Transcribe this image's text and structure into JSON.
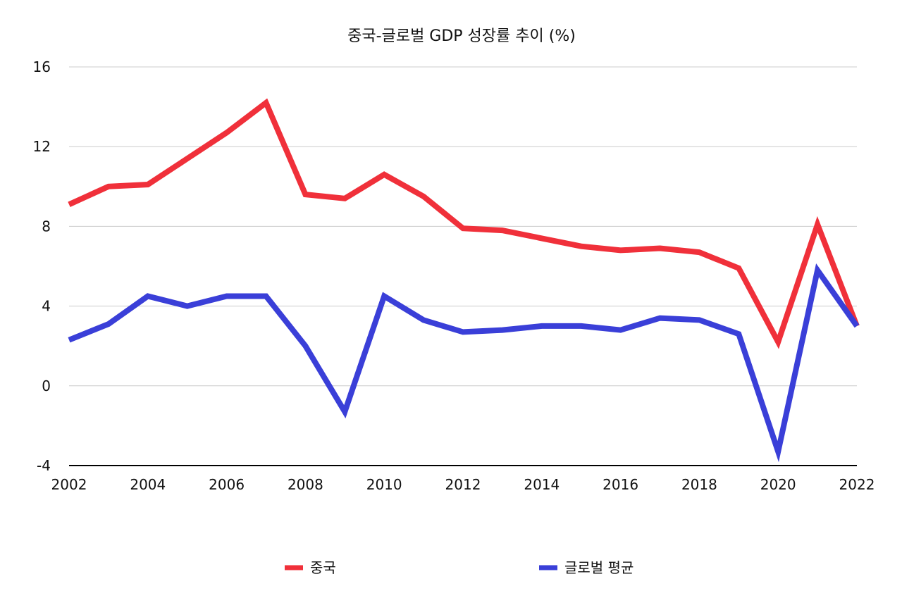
{
  "chart_data": {
    "type": "line",
    "title": "중국-글로벌 GDP 성장률 추이 (%)",
    "xlabel": "",
    "ylabel": "",
    "x": [
      2002,
      2003,
      2004,
      2005,
      2006,
      2007,
      2008,
      2009,
      2010,
      2011,
      2012,
      2013,
      2014,
      2015,
      2016,
      2017,
      2018,
      2019,
      2020,
      2021,
      2022
    ],
    "x_ticks": [
      "2002",
      "2004",
      "2006",
      "2008",
      "2010",
      "2012",
      "2014",
      "2016",
      "2018",
      "2020",
      "2022"
    ],
    "y_ticks": [
      "-4",
      "0",
      "4",
      "8",
      "12",
      "16"
    ],
    "ylim": [
      -4,
      16
    ],
    "grid": true,
    "legend_position": "bottom",
    "series": [
      {
        "name": "중국",
        "color": "#F0303A",
        "values": [
          9.1,
          10.0,
          10.1,
          11.4,
          12.7,
          14.2,
          9.6,
          9.4,
          10.6,
          9.5,
          7.9,
          7.8,
          7.4,
          7.0,
          6.8,
          6.9,
          6.7,
          5.9,
          2.2,
          8.1,
          3.0
        ]
      },
      {
        "name": "글로벌 평균",
        "color": "#3A3FD8",
        "values": [
          2.3,
          3.1,
          4.5,
          4.0,
          4.5,
          4.5,
          2.0,
          -1.3,
          4.5,
          3.3,
          2.7,
          2.8,
          3.0,
          3.0,
          2.8,
          3.4,
          3.3,
          2.6,
          -3.3,
          5.8,
          3.0
        ]
      }
    ]
  }
}
